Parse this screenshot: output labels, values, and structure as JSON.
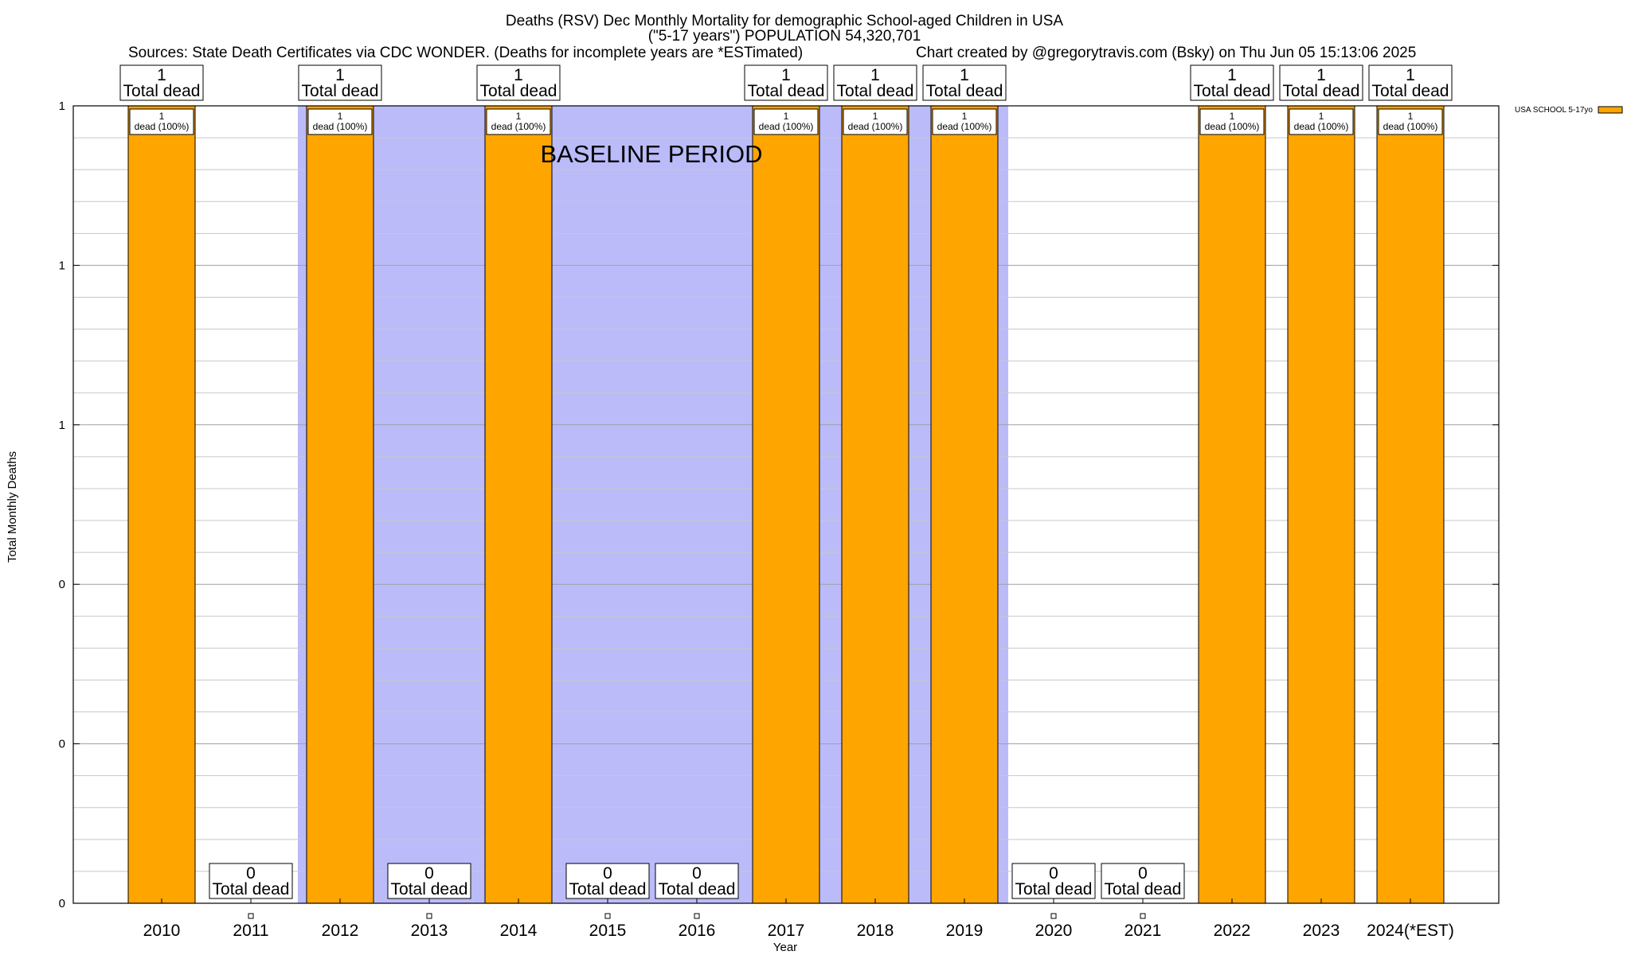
{
  "chart_data": {
    "type": "bar",
    "title": "Deaths (RSV) Dec Monthly Mortality for demographic School-aged Children in USA",
    "subtitle": "(\"5-17 years\") POPULATION 54,320,701",
    "source": "Sources: State Death Certificates via CDC WONDER. (Deaths for incomplete years are *ESTimated)",
    "credit": "Chart created by @gregorytravis.com (Bsky) on Thu Jun 05 15:13:06 2025",
    "xlabel": "Year",
    "ylabel": "Total Monthly Deaths",
    "categories": [
      "2010",
      "2011",
      "2012",
      "2013",
      "2014",
      "2015",
      "2016",
      "2017",
      "2018",
      "2019",
      "2020",
      "2021",
      "2022",
      "2023",
      "2024(*EST)"
    ],
    "series": [
      {
        "name": "USA SCHOOL 5-17yo",
        "color": "#ffa500",
        "values": [
          1,
          0,
          1,
          0,
          1,
          0,
          0,
          1,
          1,
          1,
          0,
          0,
          1,
          1,
          1
        ]
      }
    ],
    "bar_top_count_labels": [
      "1",
      "0",
      "1",
      "0",
      "1",
      "0",
      "0",
      "1",
      "1",
      "1",
      "0",
      "0",
      "1",
      "1",
      "1"
    ],
    "bar_top_caption": "Total dead",
    "bar_inner_labels": [
      {
        "count": "1",
        "text": "dead (100%)"
      },
      null,
      {
        "count": "1",
        "text": "dead (100%)"
      },
      null,
      {
        "count": "1",
        "text": "dead (100%)"
      },
      null,
      null,
      {
        "count": "1",
        "text": "dead (100%)"
      },
      {
        "count": "1",
        "text": "dead (100%)"
      },
      {
        "count": "1",
        "text": "dead (100%)"
      },
      null,
      null,
      {
        "count": "1",
        "text": "dead (100%)"
      },
      {
        "count": "1",
        "text": "dead (100%)"
      },
      {
        "count": "1",
        "text": "dead (100%)"
      }
    ],
    "ylim": [
      0,
      1
    ],
    "y_ticks": [
      0,
      0.2,
      0.4,
      0.6,
      0.8,
      1
    ],
    "y_tick_labels": [
      "0",
      "0",
      "0",
      "1",
      "1",
      "1"
    ],
    "y_minor_gridlines_per_major": 5,
    "baseline_period": {
      "label": "BASELINE PERIOD",
      "from_category": "2012",
      "to_category": "2019",
      "color": "#bbbbfa"
    },
    "grid": true,
    "legend_position": "top-right"
  }
}
